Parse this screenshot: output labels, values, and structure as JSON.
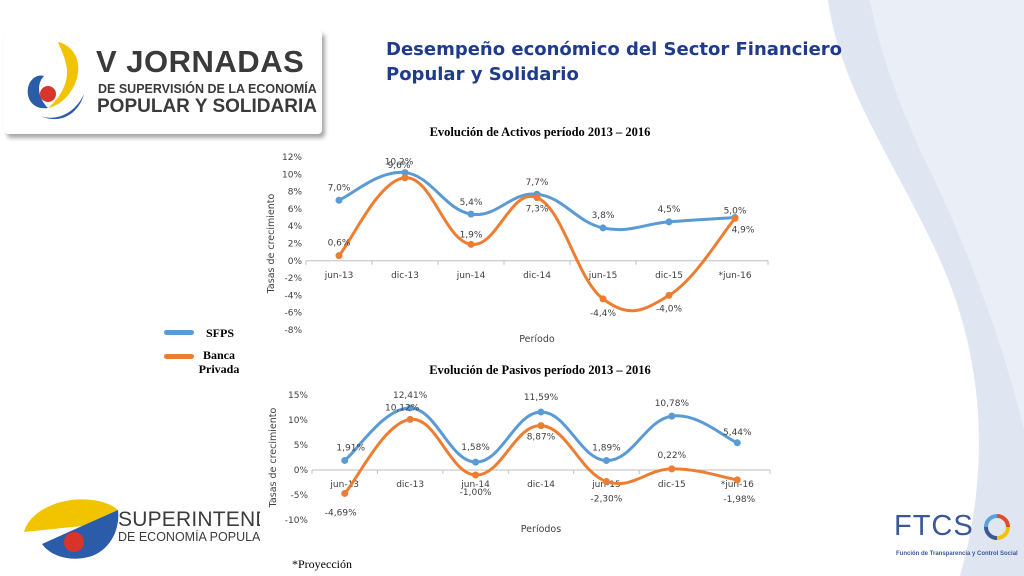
{
  "slide": {
    "title_line1": "Desempeño económico del Sector Financiero",
    "title_line2": "Popular y Solidario",
    "footnote": "*Proyección"
  },
  "logos": {
    "event_line1": "V JORNADAS",
    "event_line2": "DE SUPERVISIÓN DE LA ECONOMÍA",
    "event_line3": "POPULAR Y SOLIDARIA",
    "super_line1": "SUPERINTENDE",
    "super_line2": "DE ECONOMÍA POPULAR Y",
    "ftcs": "FTCS",
    "ftcs_sub": "Función de Transparencia y Control Social"
  },
  "legend": {
    "items": [
      {
        "label": "SFPS",
        "color": "#5b9bd5"
      },
      {
        "label": "Banca Privada",
        "color": "#ed7d31"
      }
    ]
  },
  "colors": {
    "sfps": "#5b9bd5",
    "banca": "#ed7d31",
    "title_blue": "#1f3b8c",
    "wave": "#dde5f1"
  },
  "chart_data": [
    {
      "type": "line",
      "title": "Evolución de Activos período 2013 – 2016",
      "xlabel": "Período",
      "ylabel": "Tasas de crecimiento",
      "categories": [
        "jun-13",
        "dic-13",
        "jun-14",
        "dic-14",
        "jun-15",
        "dic-15",
        "*jun-16"
      ],
      "ylim": [
        -8,
        12
      ],
      "yticks": [
        "12%",
        "10%",
        "8%",
        "6%",
        "4%",
        "2%",
        "0%",
        "-2%",
        "-4%",
        "-6%",
        "-8%"
      ],
      "series": [
        {
          "name": "SFPS",
          "values": [
            7.0,
            10.2,
            5.4,
            7.7,
            3.8,
            4.5,
            5.0
          ],
          "labels": [
            "7,0%",
            "10,2%",
            "5,4%",
            "7,7%",
            "3,8%",
            "4,5%",
            "5,0%"
          ]
        },
        {
          "name": "Banca Privada",
          "values": [
            0.6,
            9.6,
            1.9,
            7.3,
            -4.4,
            -4.0,
            4.9
          ],
          "labels": [
            "0,6%",
            "9,6%",
            "1,9%",
            "7,3%",
            "-4,4%",
            "-4,0%",
            "4,9%"
          ]
        }
      ],
      "grid": false,
      "legend": "left"
    },
    {
      "type": "line",
      "title": "Evolución de Pasivos período 2013 – 2016",
      "xlabel": "Períodos",
      "ylabel": "Tasas de crecimiento",
      "categories": [
        "jun-13",
        "dic-13",
        "jun-14",
        "dic-14",
        "jun-15",
        "dic-15",
        "*jun-16"
      ],
      "ylim": [
        -10,
        15
      ],
      "yticks": [
        "15%",
        "10%",
        "5%",
        "0%",
        "-5%",
        "-10%"
      ],
      "series": [
        {
          "name": "SFPS",
          "values": [
            1.91,
            12.41,
            1.58,
            11.59,
            1.89,
            10.78,
            5.44
          ],
          "labels": [
            "1,91%",
            "12,41%",
            "1,58%",
            "11,59%",
            "1,89%",
            "10,78%",
            "5,44%"
          ]
        },
        {
          "name": "Banca Privada",
          "values": [
            -4.69,
            10.12,
            -1.0,
            8.87,
            -2.3,
            0.22,
            -1.98
          ],
          "labels": [
            "-4,69%",
            "10,12%",
            "-1,00%",
            "8,87%",
            "-2,30%",
            "0,22%",
            "-1,98%"
          ]
        }
      ],
      "grid": false,
      "legend": "left"
    }
  ]
}
